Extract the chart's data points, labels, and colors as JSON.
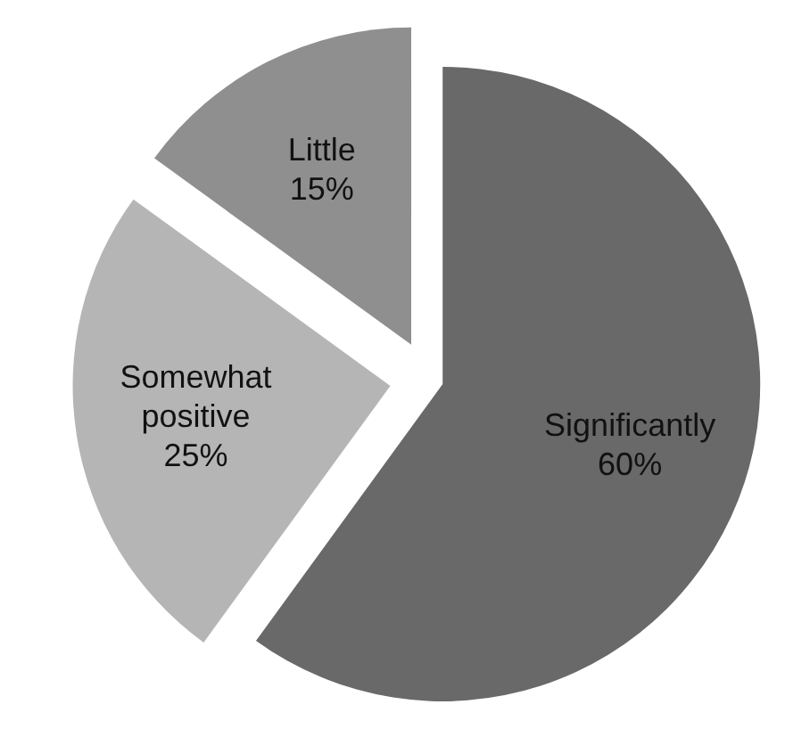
{
  "chart_data": {
    "type": "pie",
    "categories": [
      "Significantly",
      "Somewhat positive",
      "Little"
    ],
    "values": [
      60,
      25,
      15
    ],
    "colors": [
      "#696969",
      "#b5b5b5",
      "#8f8f8f"
    ],
    "value_labels": [
      "60%",
      "25%",
      "15%"
    ]
  }
}
